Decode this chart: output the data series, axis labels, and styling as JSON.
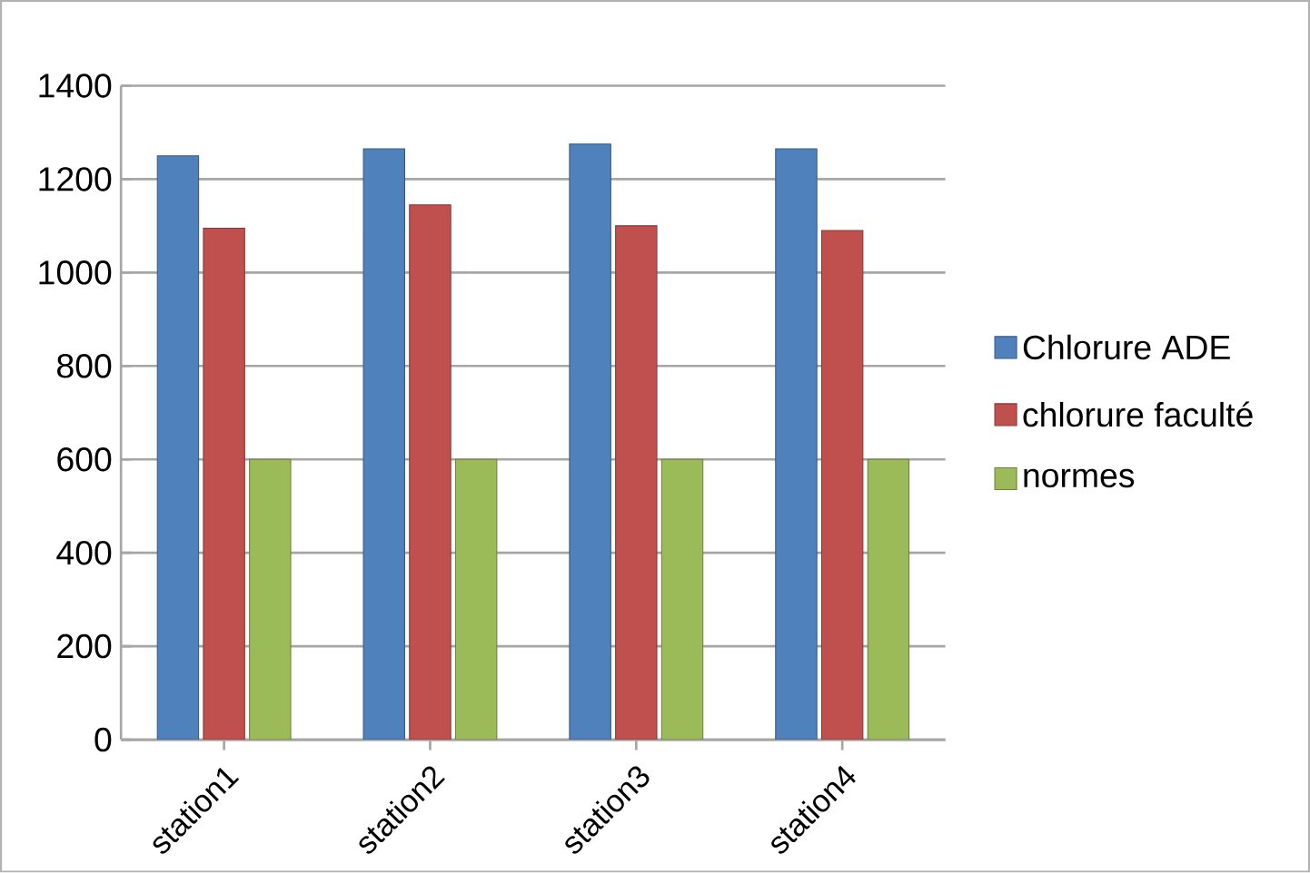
{
  "chart_data": {
    "type": "bar",
    "categories": [
      "station1",
      "station2",
      "station3",
      "station4"
    ],
    "series": [
      {
        "name": "Chlorure ADE",
        "color": "#4f81bd",
        "values": [
          1250,
          1265,
          1275,
          1265
        ]
      },
      {
        "name": "chlorure faculté",
        "color": "#c0504d",
        "values": [
          1095,
          1145,
          1100,
          1090
        ]
      },
      {
        "name": "normes",
        "color": "#9bbb59",
        "values": [
          600,
          600,
          600,
          600
        ]
      }
    ],
    "ylim": [
      0,
      1400
    ],
    "yticks": [
      0,
      200,
      400,
      600,
      800,
      1000,
      1200,
      1400
    ],
    "grid": "y",
    "legend": "right"
  }
}
